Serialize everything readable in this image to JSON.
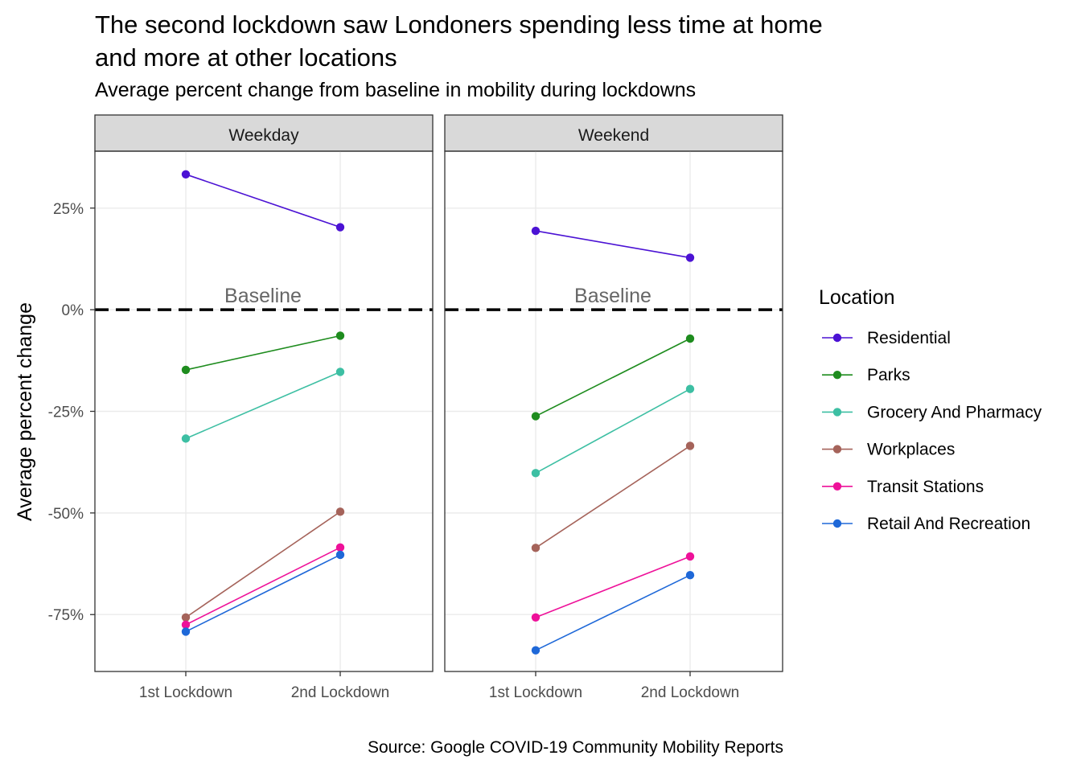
{
  "title_lines": [
    "The second lockdown saw Londoners spending less time at home",
    "and more at other locations"
  ],
  "subtitle": "Average percent change from baseline in mobility during lockdowns",
  "caption": "Source: Google COVID-19 Community Mobility Reports",
  "chart_data": {
    "type": "line",
    "ylabel": "Average percent change",
    "xlabel": "",
    "categories": [
      "1st Lockdown",
      "2nd Lockdown"
    ],
    "ylim": [
      -89,
      39
    ],
    "yticks": [
      25,
      0,
      -25,
      -50,
      -75
    ],
    "ytick_labels": [
      "25%",
      "0%",
      "-25%",
      "-50%",
      "-75%"
    ],
    "grid": true,
    "reference_line": {
      "y": 0,
      "label": "Baseline",
      "style": "dashed"
    },
    "legend": {
      "title": "Location",
      "placement": "right"
    },
    "facets": [
      {
        "label": "Weekday",
        "series": [
          {
            "name": "Residential",
            "color": "#4B12D4",
            "values": [
              33.3,
              20.3
            ]
          },
          {
            "name": "Parks",
            "color": "#1E8C1E",
            "values": [
              -14.8,
              -6.4
            ]
          },
          {
            "name": "Grocery And Pharmacy",
            "color": "#3DBFA3",
            "values": [
              -31.7,
              -15.3
            ]
          },
          {
            "name": "Workplaces",
            "color": "#A5635A",
            "values": [
              -75.7,
              -49.7
            ]
          },
          {
            "name": "Transit Stations",
            "color": "#EE1199",
            "values": [
              -77.5,
              -58.5
            ]
          },
          {
            "name": "Retail And Recreation",
            "color": "#1E68D8",
            "values": [
              -79.2,
              -60.3
            ]
          }
        ]
      },
      {
        "label": "Weekend",
        "series": [
          {
            "name": "Residential",
            "color": "#4B12D4",
            "values": [
              19.4,
              12.8
            ]
          },
          {
            "name": "Parks",
            "color": "#1E8C1E",
            "values": [
              -26.2,
              -7.1
            ]
          },
          {
            "name": "Grocery And Pharmacy",
            "color": "#3DBFA3",
            "values": [
              -40.2,
              -19.5
            ]
          },
          {
            "name": "Workplaces",
            "color": "#A5635A",
            "values": [
              -58.6,
              -33.5
            ]
          },
          {
            "name": "Transit Stations",
            "color": "#EE1199",
            "values": [
              -75.7,
              -60.7
            ]
          },
          {
            "name": "Retail And Recreation",
            "color": "#1E68D8",
            "values": [
              -83.8,
              -65.3
            ]
          }
        ]
      }
    ]
  }
}
